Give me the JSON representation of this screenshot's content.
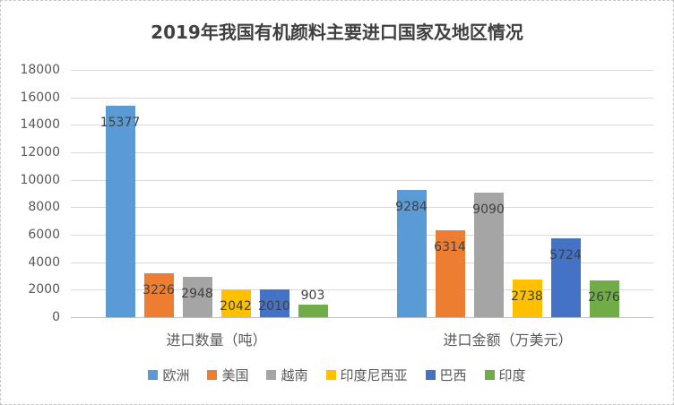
{
  "title": "2019年我国有机颜料主要进口国家及地区情况",
  "chart_data": {
    "type": "bar",
    "title": "2019年我国有机颜料主要进口国家及地区情况",
    "categories": [
      "进口数量（吨）",
      "进口金额（万美元）"
    ],
    "series": [
      {
        "name": "欧洲",
        "color": "#5B9BD5",
        "values": [
          15377,
          9284
        ]
      },
      {
        "name": "美国",
        "color": "#ED7D31",
        "values": [
          3226,
          6314
        ]
      },
      {
        "name": "越南",
        "color": "#A5A5A5",
        "values": [
          2948,
          9090
        ]
      },
      {
        "name": "印度尼西亚",
        "color": "#FFC000",
        "values": [
          2042,
          2738
        ]
      },
      {
        "name": "巴西",
        "color": "#4472C4",
        "values": [
          2010,
          5724
        ]
      },
      {
        "name": "印度",
        "color": "#70AD47",
        "values": [
          903,
          2676
        ]
      }
    ],
    "ylim": [
      0,
      18000
    ],
    "yticks": [
      0,
      2000,
      4000,
      6000,
      8000,
      10000,
      12000,
      14000,
      16000,
      18000
    ],
    "grid": true,
    "legend_position": "bottom",
    "data_labels": "inside-end",
    "colors": {
      "gridline": "#D9D9D9",
      "axis_line": "#BFBFBF",
      "tick_text": "#595959",
      "data_label_text": "#404040",
      "title_text": "#404040"
    }
  }
}
